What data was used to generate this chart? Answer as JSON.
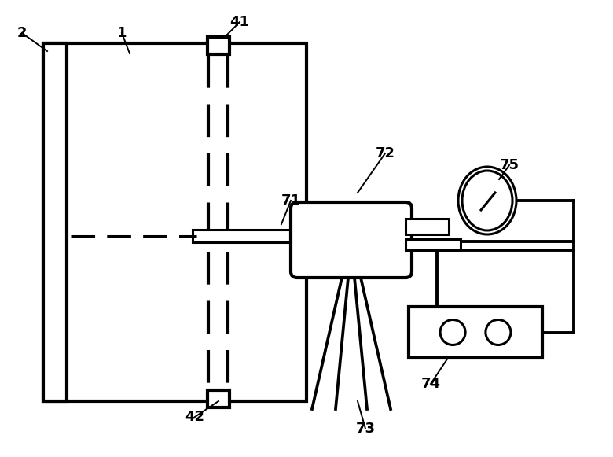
{
  "bg_color": "#ffffff",
  "line_color": "#000000",
  "lw": 2.2,
  "thick_lw": 3.0,
  "circ_lw": 2.8,
  "font_sz": 13,
  "label_lw": 1.4
}
